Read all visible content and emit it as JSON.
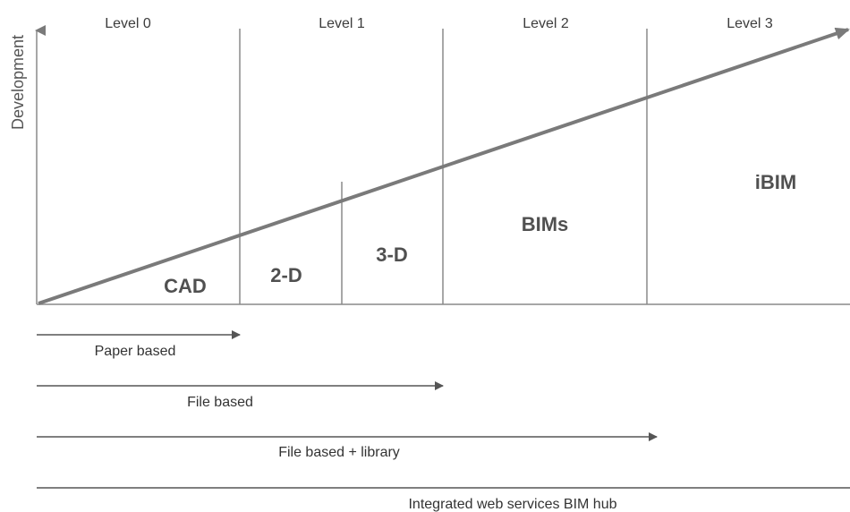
{
  "y_axis_label": "Development",
  "levels": [
    "Level 0",
    "Level 1",
    "Level 2",
    "Level 3"
  ],
  "zones": {
    "cad": "CAD",
    "two_d": "2-D",
    "three_d": "3-D",
    "bims": "BIMs",
    "ibim": "iBIM"
  },
  "bases": {
    "paper": "Paper based",
    "file": "File based",
    "file_library": "File based + library",
    "web_hub": "Integrated web services BIM hub"
  },
  "colors": {
    "line": "#7a7a7a",
    "text": "#333333"
  }
}
